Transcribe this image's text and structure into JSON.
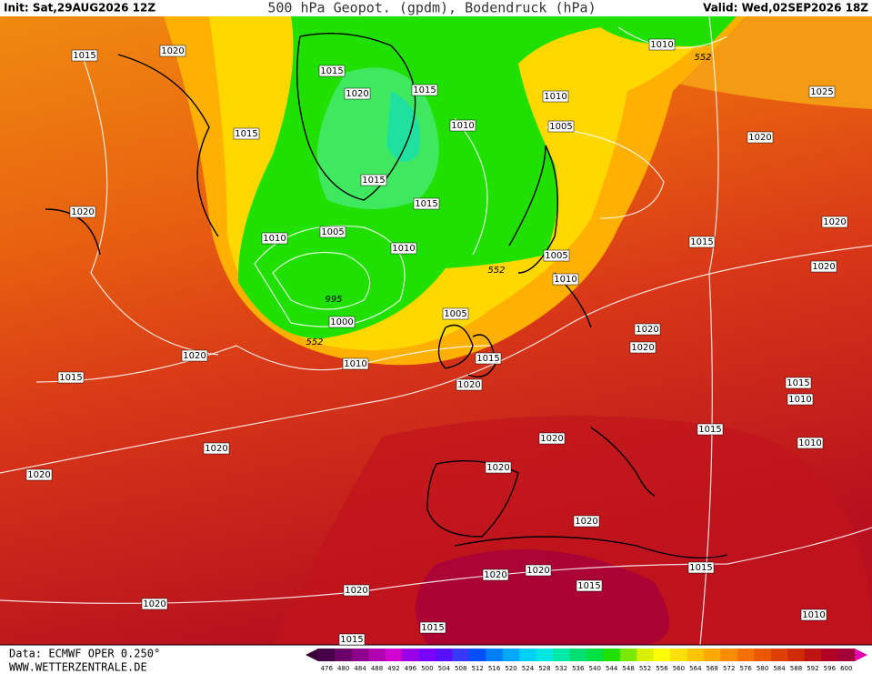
{
  "header": {
    "init": "Init: Sat,29AUG2026 12Z",
    "title": "500 hPa Geopot. (gpdm), Bodendruck (hPa)",
    "valid": "Valid: Wed,02SEP2026 18Z"
  },
  "footer": {
    "source": "Data: ECMWF OPER 0.250°",
    "site": "WWW.WETTERZENTRALE.DE"
  },
  "legend": {
    "labels": [
      476,
      480,
      484,
      488,
      492,
      496,
      500,
      504,
      508,
      512,
      516,
      520,
      524,
      528,
      532,
      536,
      540,
      544,
      548,
      552,
      556,
      560,
      564,
      568,
      572,
      576,
      580,
      584,
      588,
      592,
      596,
      600
    ],
    "colors": [
      "#4a0048",
      "#6a006a",
      "#8c008c",
      "#b000b0",
      "#d000d0",
      "#9a00e8",
      "#7a00ff",
      "#5a10ff",
      "#3838ff",
      "#0050ff",
      "#0080ff",
      "#00a8ff",
      "#00d0ff",
      "#00e6e0",
      "#00e8a8",
      "#00e070",
      "#00e040",
      "#20e000",
      "#7ae800",
      "#d8f000",
      "#ffff00",
      "#ffe000",
      "#ffc400",
      "#ffa800",
      "#ff8c00",
      "#f47000",
      "#ea5800",
      "#de4000",
      "#d02a00",
      "#c01414",
      "#b00024",
      "#a40036"
    ]
  },
  "isobar_labels": [
    "1015",
    "1020",
    "1015",
    "1020",
    "1015",
    "1010",
    "552",
    "1010",
    "1025",
    "1015",
    "1010",
    "1005",
    "1020",
    "1015",
    "1015",
    "1020",
    "1020",
    "1005",
    "1010",
    "1010",
    "1015",
    "1005",
    "552",
    "1020",
    "1010",
    "995",
    "1005",
    "1000",
    "1020",
    "552",
    "1020",
    "1020",
    "1010",
    "1015",
    "1015",
    "1015",
    "1020",
    "1010",
    "1015",
    "1020",
    "1010",
    "1020",
    "1020",
    "1020",
    "1020",
    "1015",
    "1020",
    "1020",
    "1015",
    "1020",
    "1020",
    "1010",
    "1015",
    "1015"
  ]
}
